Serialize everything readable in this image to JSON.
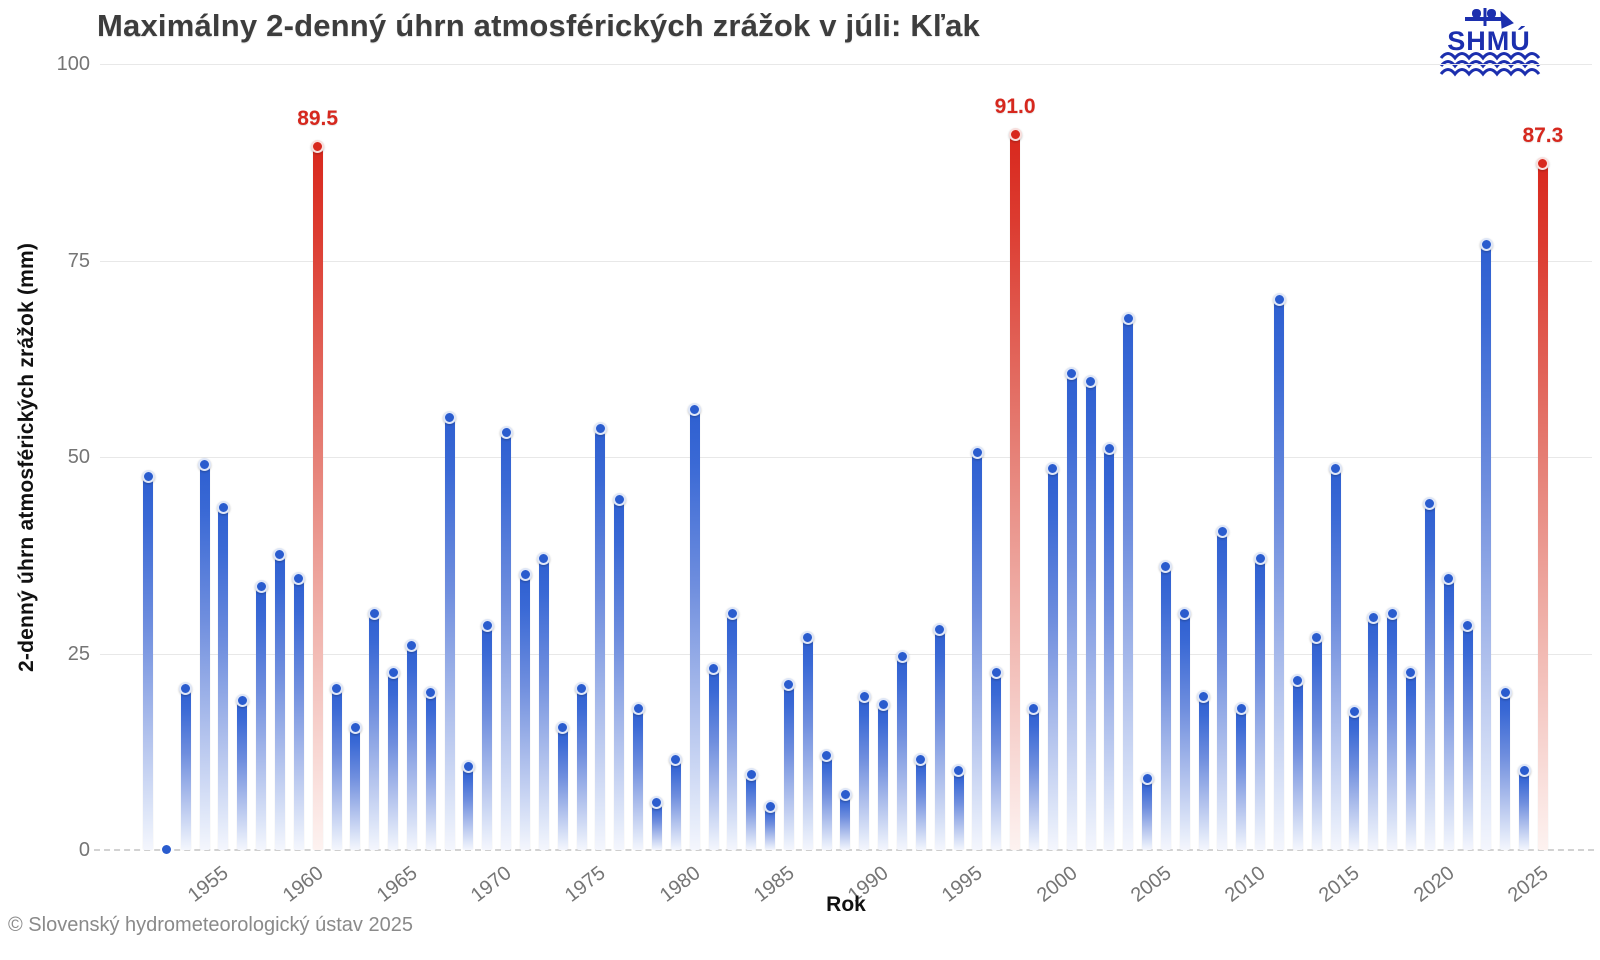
{
  "page": {
    "footer": "© Slovenský hydrometeorologický ústav 2025"
  },
  "logo": {
    "text": "SHMÚ"
  },
  "chart_data": {
    "type": "bar",
    "title": "Maximálny 2-denný úhrn atmosférických zrážok v júli: Kľak",
    "xlabel": "Rok",
    "ylabel": "2-denný úhrn atmosférických zrážok (mm)",
    "ylim": [
      0,
      100
    ],
    "y_ticks": [
      0,
      25,
      50,
      75,
      100
    ],
    "x_ticks": [
      1955,
      1960,
      1965,
      1970,
      1975,
      1980,
      1985,
      1990,
      1995,
      2000,
      2005,
      2010,
      2015,
      2020,
      2025
    ],
    "grid": "horizontal-only",
    "legend": "none",
    "years": [
      1951,
      1952,
      1953,
      1954,
      1955,
      1956,
      1957,
      1958,
      1959,
      1960,
      1961,
      1962,
      1963,
      1964,
      1965,
      1966,
      1967,
      1968,
      1969,
      1970,
      1971,
      1972,
      1973,
      1974,
      1975,
      1976,
      1977,
      1978,
      1979,
      1980,
      1981,
      1982,
      1983,
      1984,
      1985,
      1986,
      1987,
      1988,
      1989,
      1990,
      1991,
      1992,
      1993,
      1994,
      1995,
      1996,
      1997,
      1998,
      1999,
      2000,
      2001,
      2002,
      2003,
      2004,
      2005,
      2006,
      2007,
      2008,
      2009,
      2010,
      2011,
      2012,
      2013,
      2014,
      2015,
      2016,
      2017,
      2018,
      2019,
      2020,
      2021,
      2022,
      2023,
      2024,
      2025
    ],
    "values": [
      47.5,
      0,
      20.5,
      49,
      43.5,
      19,
      33.5,
      37.5,
      34.5,
      89.5,
      20.5,
      15.5,
      30,
      22.5,
      26,
      20,
      55,
      10.5,
      28.5,
      53,
      35,
      37,
      15.5,
      20.5,
      53.5,
      44.5,
      18,
      6,
      11.5,
      56,
      23,
      30,
      9.5,
      5.5,
      21,
      27,
      12,
      7,
      19.5,
      18.5,
      24.5,
      11.5,
      28,
      10,
      50.5,
      22.5,
      91,
      18,
      48.5,
      60.5,
      59.5,
      51,
      67.5,
      9,
      36,
      30,
      19.5,
      40.5,
      18,
      37,
      70,
      21.5,
      27,
      48.5,
      17.5,
      29.5,
      30,
      22.5,
      44,
      34.5,
      28.5,
      77,
      20,
      10,
      87.3
    ],
    "highlights": [
      {
        "year": 1960,
        "value": 89.5,
        "label": "89.5"
      },
      {
        "year": 1997,
        "value": 91.0,
        "label": "91.0"
      },
      {
        "year": 2025,
        "value": 87.3,
        "label": "87.3"
      }
    ],
    "colors": {
      "bar_blue": "#2e5fd0",
      "bar_red": "#d8281d",
      "peak_label_red": "#d6281e",
      "grid": "#e8e8e8",
      "zero_dash": "#d2d2d2",
      "tick_text": "#757575",
      "title_text": "#3d3d3d",
      "footer_text": "#8a8a8a",
      "logo_blue": "#1c2fae"
    }
  }
}
